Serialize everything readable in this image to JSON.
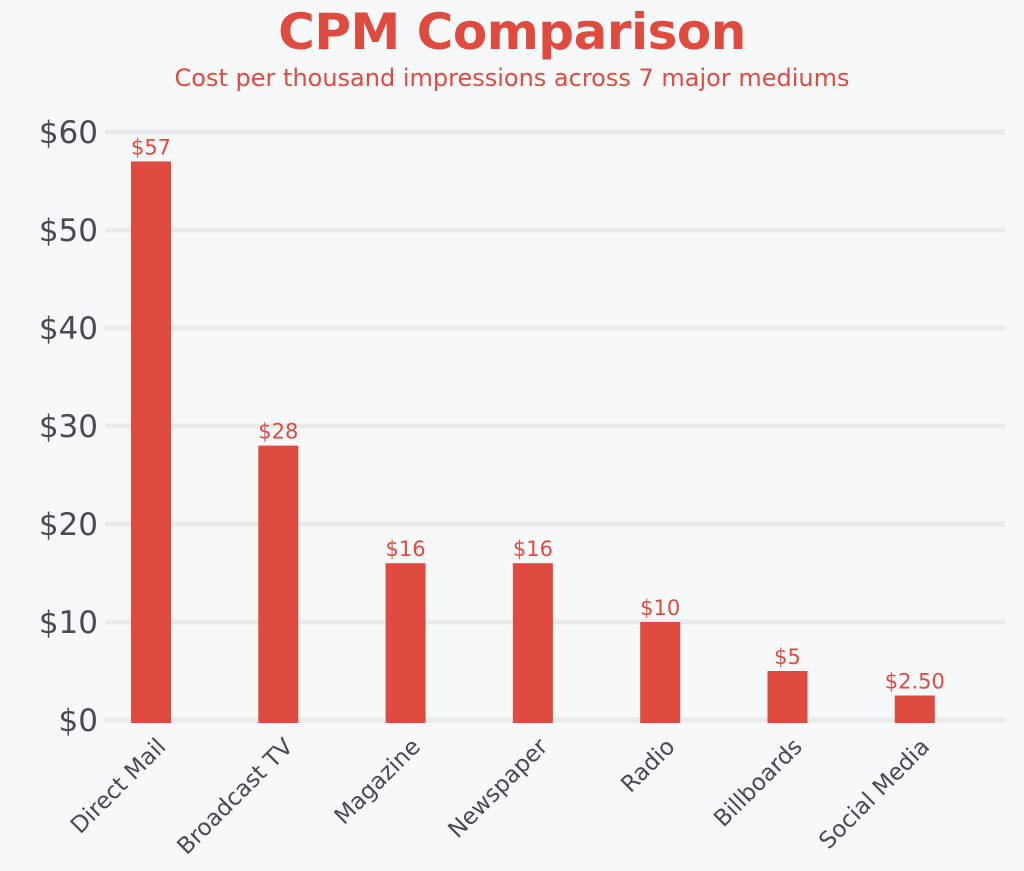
{
  "colors": {
    "accent": "#e04b3f",
    "text": "#4a4a55",
    "grid": "#e9eaed",
    "background": "#f7f8fa"
  },
  "chart_data": {
    "type": "bar",
    "title": "CPM Comparison",
    "subtitle": "Cost per thousand impressions across 7 major mediums",
    "xlabel": "",
    "ylabel": "",
    "ylim": [
      0,
      60
    ],
    "yticks": [
      0,
      10,
      20,
      30,
      40,
      50,
      60
    ],
    "ytick_labels": [
      "$0",
      "$10",
      "$20",
      "$30",
      "$40",
      "$50",
      "$60"
    ],
    "grid": true,
    "categories": [
      "Direct Mail",
      "Broadcast TV",
      "Magazine",
      "Newspaper",
      "Radio",
      "Billboards",
      "Social Media"
    ],
    "values": [
      57,
      28,
      16,
      16,
      10,
      5,
      2.5
    ],
    "data_labels": [
      "$57",
      "$28",
      "$16",
      "$16",
      "$10",
      "$5",
      "$2.50"
    ]
  }
}
